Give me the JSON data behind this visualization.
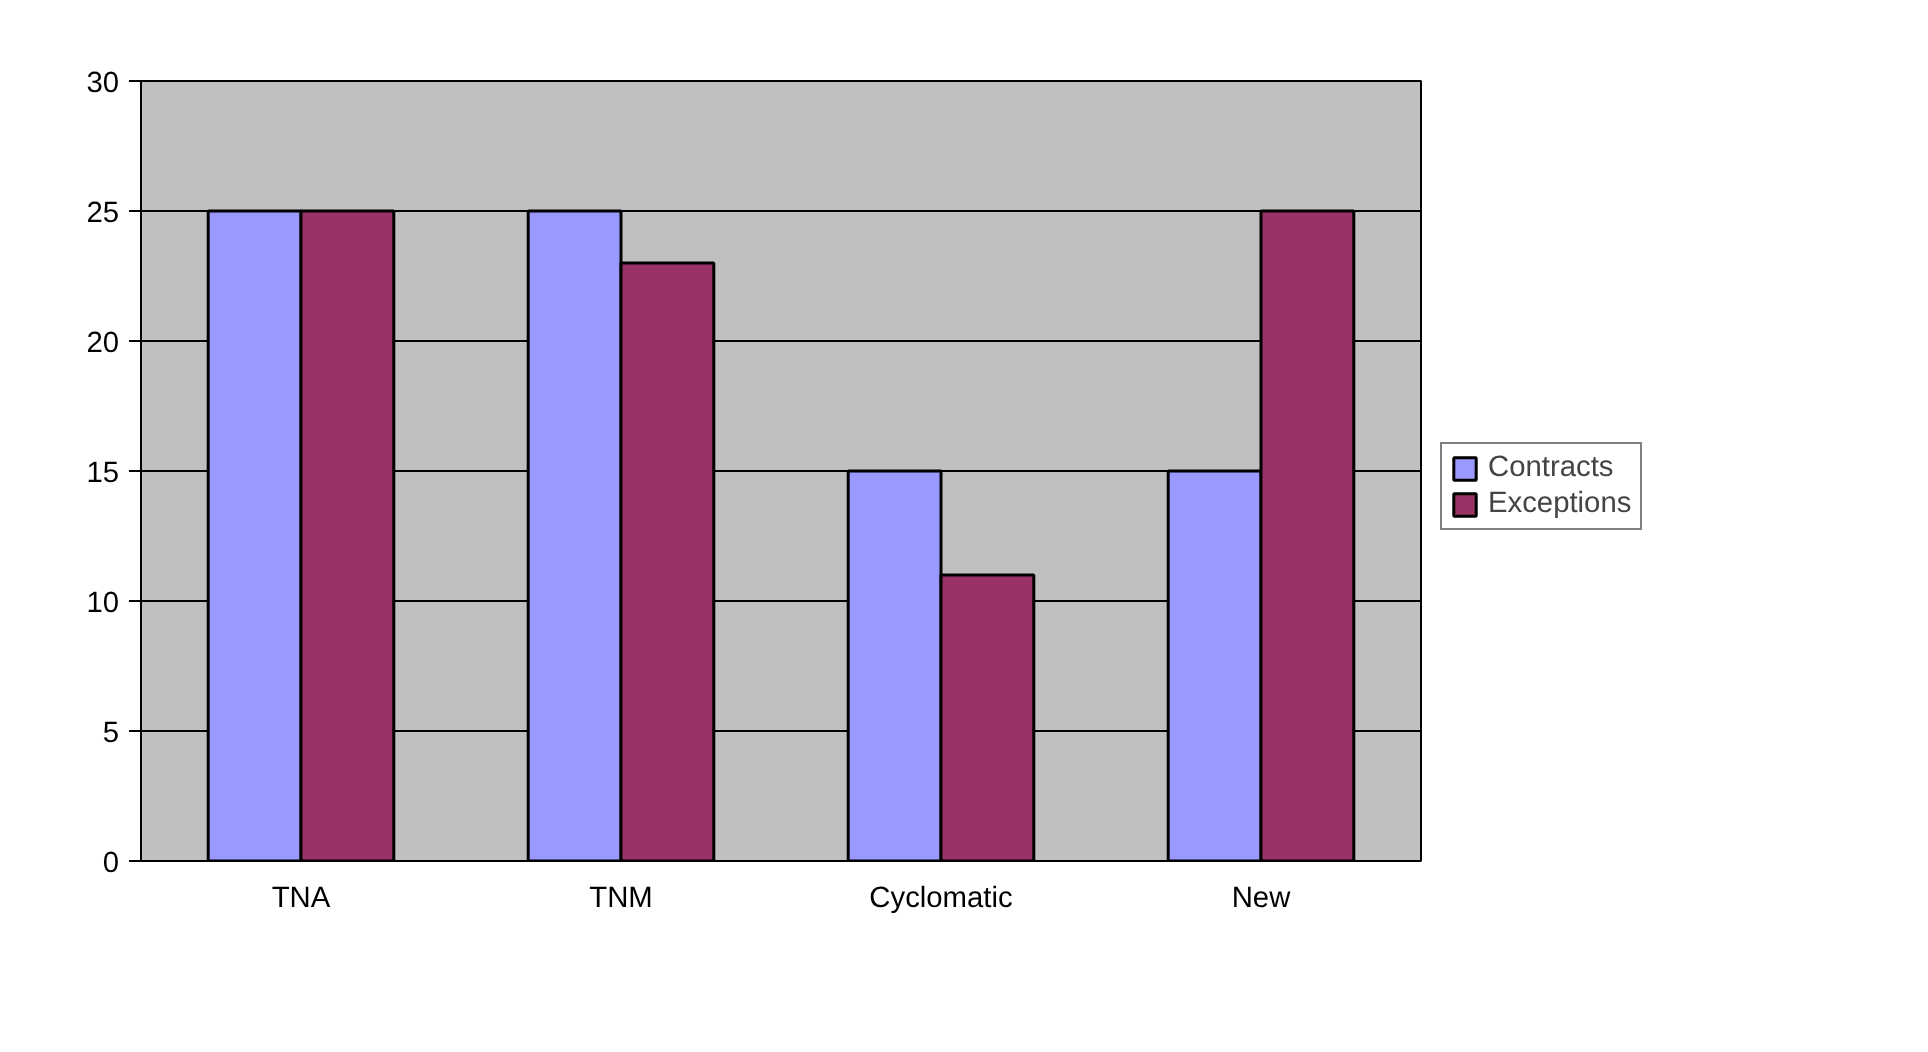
{
  "chart_data": {
    "type": "bar",
    "categories": [
      "TNA",
      "TNM",
      "Cyclomatic",
      "New"
    ],
    "series": [
      {
        "name": "Contracts",
        "color": "#9999ff",
        "values": [
          25,
          25,
          15,
          15
        ]
      },
      {
        "name": "Exceptions",
        "color": "#993366",
        "values": [
          25,
          23,
          11,
          25
        ]
      }
    ],
    "ylim": [
      0,
      30
    ],
    "yticks": [
      0,
      5,
      10,
      15,
      20,
      25,
      30
    ],
    "grid": "y",
    "legend": "right"
  }
}
